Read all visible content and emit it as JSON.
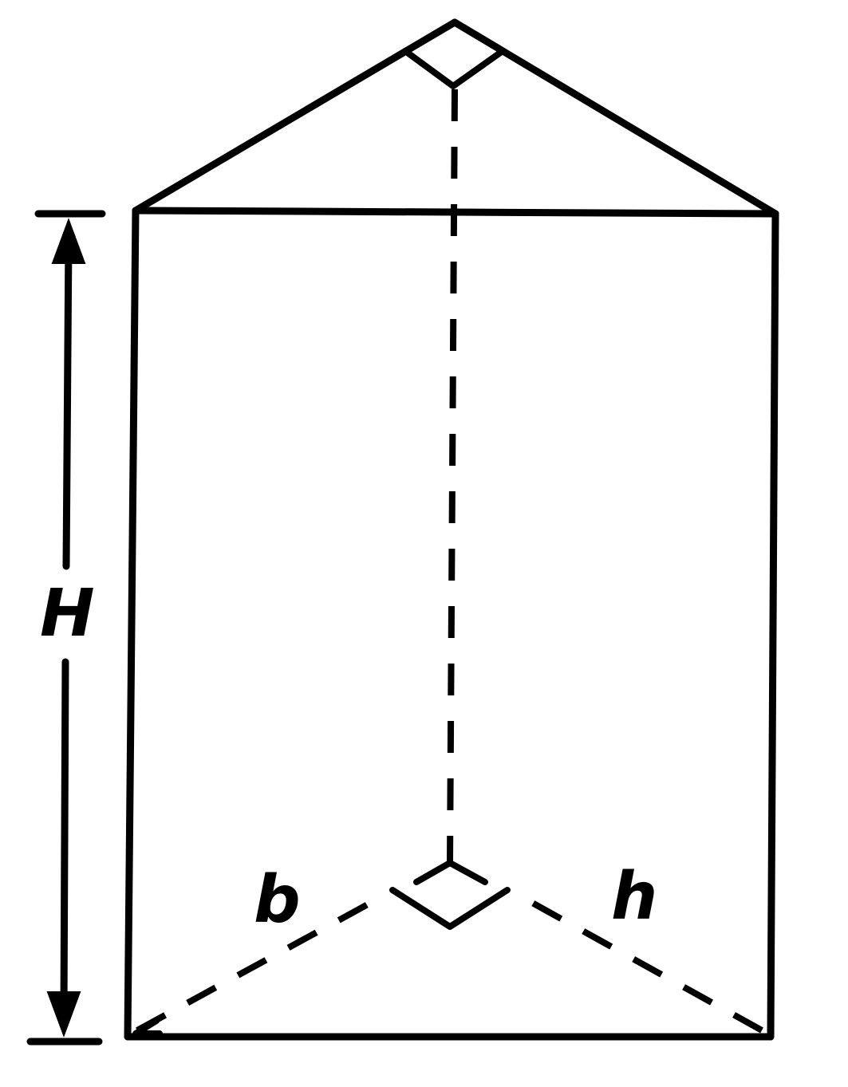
{
  "labels": {
    "height": "H",
    "base": "b",
    "altitude": "h"
  },
  "colors": {
    "ink": "#000000",
    "background": "#ffffff"
  }
}
